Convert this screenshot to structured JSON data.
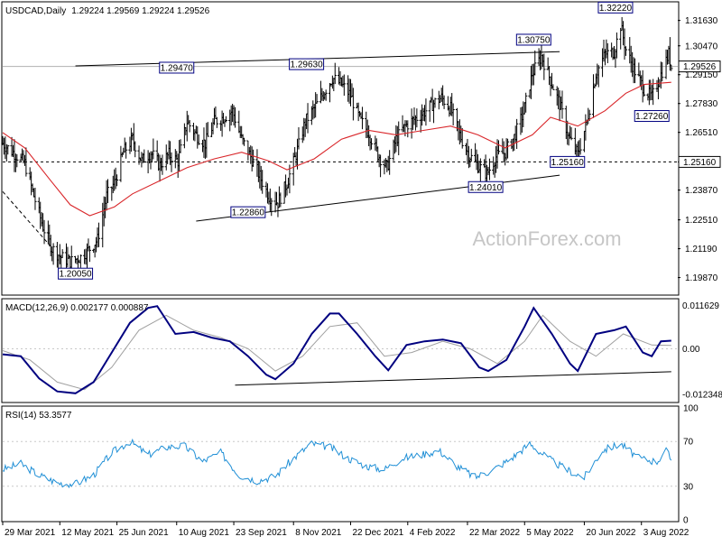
{
  "chart_data": {
    "type": "candlestick",
    "header": {
      "symbol": "USDCAD,Daily",
      "ohlc": "1.29224 1.29569 1.29224 1.29526"
    },
    "watermark": "ActionForex.com",
    "colors": {
      "bars": "#000000",
      "ma": "#d9262a",
      "macd": "#000080",
      "signal": "#a0a0a0",
      "rsi": "#1f8fd6",
      "grid": "#c8c8c8",
      "label_border": "#000080"
    },
    "price_panel": {
      "ylim": [
        1.1915,
        1.324
      ],
      "y_ticks": [
        "1.31630",
        "1.30470",
        "1.29150",
        "1.27830",
        "1.26510",
        "1.25160",
        "1.23870",
        "1.22510",
        "1.21190",
        "1.19870"
      ],
      "current_price_label": "1.29526",
      "horizontal_line_label": "1.25160",
      "annotations": [
        {
          "text": "1.20050",
          "date": "2021-05-24",
          "price": 1.2005
        },
        {
          "text": "1.29470",
          "date": "2021-08-10",
          "price": 1.2947
        },
        {
          "text": "1.22860",
          "date": "2021-10-04",
          "price": 1.2286
        },
        {
          "text": "1.29630",
          "date": "2021-11-18",
          "price": 1.2963
        },
        {
          "text": "1.24010",
          "date": "2022-04-05",
          "price": 1.2401
        },
        {
          "text": "1.30750",
          "date": "2022-05-12",
          "price": 1.3075
        },
        {
          "text": "1.25160",
          "date": "2022-06-07",
          "price": 1.2516
        },
        {
          "text": "1.32220",
          "date": "2022-07-14",
          "price": 1.3222
        },
        {
          "text": "1.27260",
          "date": "2022-08-11",
          "price": 1.2726
        }
      ],
      "trendlines": [
        {
          "kind": "resistance",
          "from": {
            "date": "2021-05-24",
            "price": 1.2955
          },
          "to": {
            "date": "2022-06-01",
            "price": 1.302
          }
        },
        {
          "kind": "support",
          "from": {
            "date": "2021-08-25",
            "price": 1.2245
          },
          "to": {
            "date": "2022-06-01",
            "price": 1.2455
          }
        },
        {
          "kind": "dashed",
          "from": {
            "date": "2021-03-29",
            "price": 1.238
          },
          "to": {
            "date": "2021-05-05",
            "price": 1.213
          }
        }
      ],
      "close_path": [
        [
          "2021-03-29",
          1.26
        ],
        [
          "2021-04-06",
          1.256
        ],
        [
          "2021-04-15",
          1.251
        ],
        [
          "2021-04-22",
          1.236
        ],
        [
          "2021-04-29",
          1.222
        ],
        [
          "2021-05-06",
          1.212
        ],
        [
          "2021-05-13",
          1.208
        ],
        [
          "2021-05-20",
          1.206
        ],
        [
          "2021-05-28",
          1.208
        ],
        [
          "2021-06-04",
          1.212
        ],
        [
          "2021-06-10",
          1.216
        ],
        [
          "2021-06-17",
          1.236
        ],
        [
          "2021-06-23",
          1.242
        ],
        [
          "2021-06-30",
          1.256
        ],
        [
          "2021-07-07",
          1.262
        ],
        [
          "2021-07-14",
          1.252
        ],
        [
          "2021-07-21",
          1.256
        ],
        [
          "2021-07-28",
          1.25
        ],
        [
          "2021-08-04",
          1.255
        ],
        [
          "2021-08-11",
          1.252
        ],
        [
          "2021-08-18",
          1.27
        ],
        [
          "2021-08-25",
          1.264
        ],
        [
          "2021-09-01",
          1.26
        ],
        [
          "2021-09-08",
          1.27
        ],
        [
          "2021-09-15",
          1.272
        ],
        [
          "2021-09-22",
          1.275
        ],
        [
          "2021-09-29",
          1.262
        ],
        [
          "2021-10-06",
          1.254
        ],
        [
          "2021-10-13",
          1.245
        ],
        [
          "2021-10-20",
          1.236
        ],
        [
          "2021-10-27",
          1.233
        ],
        [
          "2021-11-03",
          1.242
        ],
        [
          "2021-11-10",
          1.255
        ],
        [
          "2021-11-17",
          1.27
        ],
        [
          "2021-11-24",
          1.276
        ],
        [
          "2021-12-01",
          1.283
        ],
        [
          "2021-12-08",
          1.29
        ],
        [
          "2021-12-15",
          1.287
        ],
        [
          "2021-12-22",
          1.282
        ],
        [
          "2021-12-29",
          1.271
        ],
        [
          "2022-01-05",
          1.265
        ],
        [
          "2022-01-12",
          1.255
        ],
        [
          "2022-01-19",
          1.249
        ],
        [
          "2022-01-26",
          1.262
        ],
        [
          "2022-02-02",
          1.268
        ],
        [
          "2022-02-09",
          1.271
        ],
        [
          "2022-02-16",
          1.274
        ],
        [
          "2022-02-23",
          1.278
        ],
        [
          "2022-03-02",
          1.281
        ],
        [
          "2022-03-09",
          1.276
        ],
        [
          "2022-03-16",
          1.264
        ],
        [
          "2022-03-23",
          1.255
        ],
        [
          "2022-03-30",
          1.25
        ],
        [
          "2022-04-06",
          1.246
        ],
        [
          "2022-04-13",
          1.254
        ],
        [
          "2022-04-20",
          1.256
        ],
        [
          "2022-04-27",
          1.263
        ],
        [
          "2022-05-04",
          1.274
        ],
        [
          "2022-05-11",
          1.292
        ],
        [
          "2022-05-18",
          1.3
        ],
        [
          "2022-05-25",
          1.289
        ],
        [
          "2022-06-01",
          1.278
        ],
        [
          "2022-06-08",
          1.263
        ],
        [
          "2022-06-15",
          1.255
        ],
        [
          "2022-06-22",
          1.27
        ],
        [
          "2022-06-29",
          1.292
        ],
        [
          "2022-07-06",
          1.301
        ],
        [
          "2022-07-13",
          1.302
        ],
        [
          "2022-07-18",
          1.314
        ],
        [
          "2022-07-22",
          1.303
        ],
        [
          "2022-07-29",
          1.293
        ],
        [
          "2022-08-05",
          1.285
        ],
        [
          "2022-08-11",
          1.281
        ],
        [
          "2022-08-17",
          1.29
        ],
        [
          "2022-08-24",
          1.301
        ],
        [
          "2022-08-26",
          1.295
        ]
      ],
      "ma_path": [
        [
          "2021-03-29",
          1.265
        ],
        [
          "2021-04-15",
          1.258
        ],
        [
          "2021-05-05",
          1.243
        ],
        [
          "2021-05-20",
          1.232
        ],
        [
          "2021-06-04",
          1.227
        ],
        [
          "2021-06-23",
          1.231
        ],
        [
          "2021-07-07",
          1.237
        ],
        [
          "2021-07-28",
          1.243
        ],
        [
          "2021-08-18",
          1.249
        ],
        [
          "2021-09-08",
          1.253
        ],
        [
          "2021-09-29",
          1.256
        ],
        [
          "2021-10-20",
          1.252
        ],
        [
          "2021-11-03",
          1.248
        ],
        [
          "2021-11-24",
          1.253
        ],
        [
          "2021-12-15",
          1.262
        ],
        [
          "2022-01-05",
          1.266
        ],
        [
          "2022-01-26",
          1.264
        ],
        [
          "2022-02-16",
          1.266
        ],
        [
          "2022-03-09",
          1.268
        ],
        [
          "2022-03-30",
          1.264
        ],
        [
          "2022-04-20",
          1.258
        ],
        [
          "2022-05-11",
          1.264
        ],
        [
          "2022-05-25",
          1.272
        ],
        [
          "2022-06-15",
          1.268
        ],
        [
          "2022-07-06",
          1.275
        ],
        [
          "2022-07-22",
          1.283
        ],
        [
          "2022-08-05",
          1.287
        ],
        [
          "2022-08-26",
          1.288
        ]
      ]
    },
    "macd_panel": {
      "label": "MACD(12,26,9) 0.002177 0.000887",
      "ylim": [
        -0.014,
        0.013
      ],
      "y_ticks": [
        "0.011629",
        "0.00",
        "-0.012348"
      ],
      "macd_path": [
        [
          "2021-03-29",
          -0.0015
        ],
        [
          "2021-04-12",
          -0.002
        ],
        [
          "2021-04-26",
          -0.008
        ],
        [
          "2021-05-10",
          -0.0115
        ],
        [
          "2021-05-24",
          -0.012
        ],
        [
          "2021-06-07",
          -0.009
        ],
        [
          "2021-06-21",
          -0.001
        ],
        [
          "2021-07-05",
          0.007
        ],
        [
          "2021-07-19",
          0.011
        ],
        [
          "2021-07-26",
          0.0115
        ],
        [
          "2021-08-09",
          0.004
        ],
        [
          "2021-08-23",
          0.0045
        ],
        [
          "2021-09-06",
          0.003
        ],
        [
          "2021-09-20",
          0.002
        ],
        [
          "2021-10-04",
          -0.002
        ],
        [
          "2021-10-18",
          -0.007
        ],
        [
          "2021-10-25",
          -0.0082
        ],
        [
          "2021-11-08",
          -0.004
        ],
        [
          "2021-11-22",
          0.004
        ],
        [
          "2021-12-06",
          0.0095
        ],
        [
          "2021-12-13",
          0.0095
        ],
        [
          "2021-12-27",
          0.004
        ],
        [
          "2022-01-10",
          -0.002
        ],
        [
          "2022-01-20",
          -0.0058
        ],
        [
          "2022-02-03",
          0.001
        ],
        [
          "2022-02-17",
          0.002
        ],
        [
          "2022-03-03",
          0.0025
        ],
        [
          "2022-03-17",
          0.0015
        ],
        [
          "2022-03-31",
          -0.005
        ],
        [
          "2022-04-07",
          -0.006
        ],
        [
          "2022-04-21",
          -0.003
        ],
        [
          "2022-05-05",
          0.006
        ],
        [
          "2022-05-12",
          0.011
        ],
        [
          "2022-05-26",
          0.004
        ],
        [
          "2022-06-09",
          -0.004
        ],
        [
          "2022-06-15",
          -0.006
        ],
        [
          "2022-06-29",
          0.004
        ],
        [
          "2022-07-13",
          0.005
        ],
        [
          "2022-07-22",
          0.006
        ],
        [
          "2022-08-04",
          -0.001
        ],
        [
          "2022-08-11",
          -0.002
        ],
        [
          "2022-08-18",
          0.002
        ],
        [
          "2022-08-26",
          0.002177
        ]
      ],
      "signal_path": [
        [
          "2021-03-29",
          -0.0005
        ],
        [
          "2021-04-19",
          -0.003
        ],
        [
          "2021-05-10",
          -0.009
        ],
        [
          "2021-05-31",
          -0.011
        ],
        [
          "2021-06-21",
          -0.005
        ],
        [
          "2021-07-12",
          0.005
        ],
        [
          "2021-08-02",
          0.009
        ],
        [
          "2021-08-23",
          0.005
        ],
        [
          "2021-09-13",
          0.003
        ],
        [
          "2021-10-04",
          0.0
        ],
        [
          "2021-10-25",
          -0.006
        ],
        [
          "2021-11-15",
          -0.002
        ],
        [
          "2021-12-06",
          0.006
        ],
        [
          "2021-12-27",
          0.007
        ],
        [
          "2022-01-17",
          -0.002
        ],
        [
          "2022-02-07",
          -0.001
        ],
        [
          "2022-03-03",
          0.002
        ],
        [
          "2022-03-24",
          0.0
        ],
        [
          "2022-04-14",
          -0.004
        ],
        [
          "2022-05-05",
          0.002
        ],
        [
          "2022-05-19",
          0.009
        ],
        [
          "2022-06-09",
          0.002
        ],
        [
          "2022-06-29",
          -0.002
        ],
        [
          "2022-07-20",
          0.004
        ],
        [
          "2022-08-11",
          0.001
        ],
        [
          "2022-08-26",
          0.000887
        ]
      ],
      "trendline": {
        "from": {
          "date": "2021-09-24",
          "value": -0.0098
        },
        "to": {
          "date": "2022-08-26",
          "value": -0.0062
        }
      }
    },
    "rsi_panel": {
      "label": "RSI(14) 53.3577",
      "ylim": [
        0,
        100
      ],
      "y_ticks": [
        "100",
        "70",
        "30",
        "0"
      ],
      "rsi_path": [
        [
          "2021-03-29",
          45
        ],
        [
          "2021-04-12",
          50
        ],
        [
          "2021-04-26",
          40
        ],
        [
          "2021-05-10",
          33
        ],
        [
          "2021-05-24",
          32
        ],
        [
          "2021-06-07",
          40
        ],
        [
          "2021-06-21",
          60
        ],
        [
          "2021-07-05",
          70
        ],
        [
          "2021-07-19",
          58
        ],
        [
          "2021-08-02",
          65
        ],
        [
          "2021-08-16",
          66
        ],
        [
          "2021-08-30",
          52
        ],
        [
          "2021-09-13",
          60
        ],
        [
          "2021-09-27",
          40
        ],
        [
          "2021-10-11",
          35
        ],
        [
          "2021-10-25",
          39
        ],
        [
          "2021-11-08",
          55
        ],
        [
          "2021-11-22",
          68
        ],
        [
          "2021-12-06",
          65
        ],
        [
          "2021-12-20",
          55
        ],
        [
          "2022-01-03",
          48
        ],
        [
          "2022-01-17",
          45
        ],
        [
          "2022-01-31",
          55
        ],
        [
          "2022-02-14",
          58
        ],
        [
          "2022-02-28",
          62
        ],
        [
          "2022-03-14",
          48
        ],
        [
          "2022-03-28",
          38
        ],
        [
          "2022-04-11",
          45
        ],
        [
          "2022-04-25",
          55
        ],
        [
          "2022-05-09",
          68
        ],
        [
          "2022-05-23",
          55
        ],
        [
          "2022-06-06",
          45
        ],
        [
          "2022-06-20",
          38
        ],
        [
          "2022-07-04",
          62
        ],
        [
          "2022-07-18",
          68
        ],
        [
          "2022-08-01",
          55
        ],
        [
          "2022-08-15",
          52
        ],
        [
          "2022-08-22",
          62
        ],
        [
          "2022-08-26",
          53.3577
        ]
      ]
    },
    "x_axis": {
      "range": [
        "2021-03-29",
        "2022-08-31"
      ],
      "ticks": [
        {
          "date": "2021-03-29",
          "label": "29 Mar 2021"
        },
        {
          "date": "2021-05-12",
          "label": "12 May 2021"
        },
        {
          "date": "2021-06-25",
          "label": "25 Jun 2021"
        },
        {
          "date": "2021-08-10",
          "label": "10 Aug 2021"
        },
        {
          "date": "2021-09-23",
          "label": "23 Sep 2021"
        },
        {
          "date": "2021-11-08",
          "label": "8 Nov 2021"
        },
        {
          "date": "2021-12-22",
          "label": "22 Dec 2021"
        },
        {
          "date": "2022-02-04",
          "label": "4 Feb 2022"
        },
        {
          "date": "2022-03-22",
          "label": "22 Mar 2022"
        },
        {
          "date": "2022-05-05",
          "label": "5 May 2022"
        },
        {
          "date": "2022-06-20",
          "label": "20 Jun 2022"
        },
        {
          "date": "2022-08-03",
          "label": "3 Aug 2022"
        }
      ]
    }
  }
}
